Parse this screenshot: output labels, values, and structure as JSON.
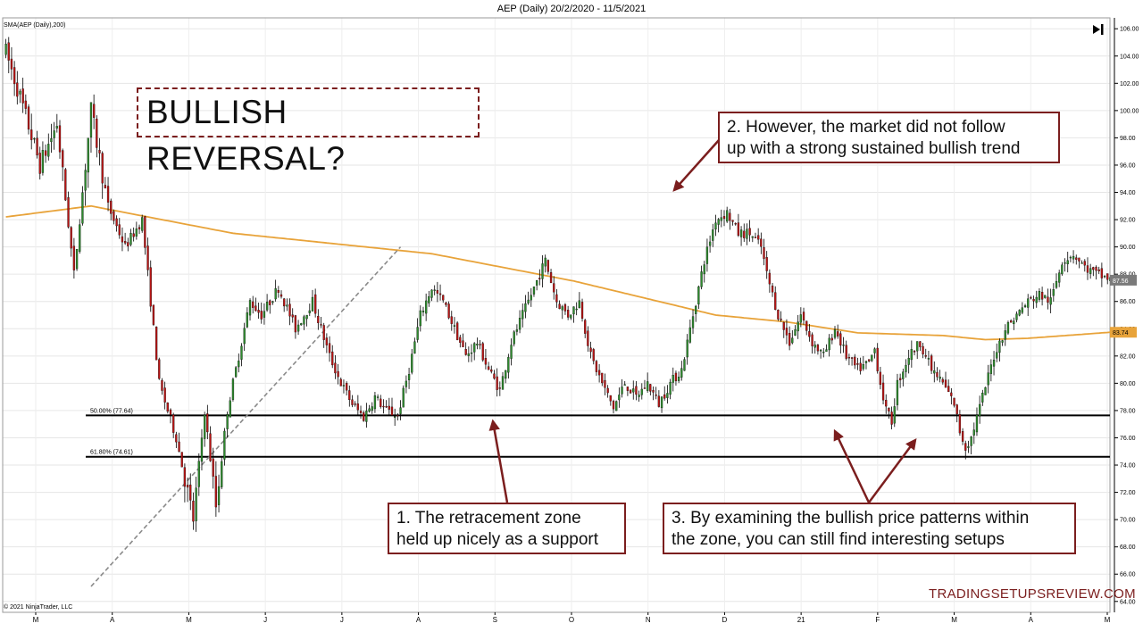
{
  "chart_data": {
    "type": "candlestick",
    "title": "AEP (Daily)  20/2/2020 - 11/5/2021",
    "indicator_label": "SMA(AEP (Daily),200)",
    "copyright": "© 2021 NinjaTrader, LLC",
    "ylim": [
      63.2,
      106.8
    ],
    "y_ticks": [
      64,
      66,
      68,
      70,
      72,
      74,
      76,
      78,
      80,
      82,
      84,
      86,
      88,
      90,
      92,
      94,
      96,
      98,
      100,
      102,
      104,
      106
    ],
    "y_tick_labels": [
      "64.00",
      "66.00",
      "68.00",
      "70.00",
      "72.00",
      "74.00",
      "76.00",
      "78.00",
      "80.00",
      "82.00",
      "84.00",
      "86.00",
      "88.00",
      "90.00",
      "92.00",
      "94.00",
      "96.00",
      "98.00",
      "100.00",
      "102.00",
      "104.00",
      "106.00"
    ],
    "months": [
      "M",
      "A",
      "M",
      "J",
      "J",
      "A",
      "S",
      "O",
      "N",
      "D",
      "21",
      "F",
      "M",
      "A",
      "M"
    ],
    "price_path": [
      [
        0,
        104.3
      ],
      [
        5,
        101
      ],
      [
        12,
        96
      ],
      [
        18,
        99
      ],
      [
        24,
        88
      ],
      [
        30,
        100
      ],
      [
        36,
        93
      ],
      [
        42,
        90
      ],
      [
        48,
        92
      ],
      [
        54,
        80
      ],
      [
        60,
        76
      ],
      [
        63,
        73
      ],
      [
        66,
        70
      ],
      [
        70,
        78
      ],
      [
        74,
        71
      ],
      [
        78,
        78
      ],
      [
        82,
        82
      ],
      [
        86,
        86
      ],
      [
        90,
        85
      ],
      [
        96,
        87
      ],
      [
        102,
        84
      ],
      [
        108,
        86
      ],
      [
        114,
        82
      ],
      [
        118,
        80
      ],
      [
        122,
        78.5
      ],
      [
        126,
        77.5
      ],
      [
        130,
        79
      ],
      [
        134,
        78
      ],
      [
        138,
        77.6
      ],
      [
        142,
        81
      ],
      [
        146,
        85
      ],
      [
        150,
        87
      ],
      [
        154,
        86
      ],
      [
        158,
        84
      ],
      [
        162,
        82
      ],
      [
        166,
        83
      ],
      [
        170,
        81
      ],
      [
        174,
        79.5
      ],
      [
        178,
        83
      ],
      [
        182,
        85
      ],
      [
        186,
        87
      ],
      [
        190,
        89
      ],
      [
        194,
        86
      ],
      [
        198,
        85
      ],
      [
        202,
        86
      ],
      [
        206,
        82
      ],
      [
        210,
        80
      ],
      [
        214,
        78.2
      ],
      [
        218,
        80
      ],
      [
        222,
        79
      ],
      [
        226,
        80
      ],
      [
        230,
        78.5
      ],
      [
        234,
        80
      ],
      [
        238,
        81
      ],
      [
        242,
        85
      ],
      [
        246,
        89
      ],
      [
        250,
        92
      ],
      [
        254,
        92.5
      ],
      [
        258,
        91
      ],
      [
        262,
        91
      ],
      [
        266,
        90
      ],
      [
        268,
        88
      ],
      [
        272,
        85
      ],
      [
        276,
        83
      ],
      [
        280,
        85
      ],
      [
        284,
        83
      ],
      [
        288,
        82
      ],
      [
        292,
        84
      ],
      [
        296,
        82
      ],
      [
        300,
        81
      ],
      [
        304,
        81.5
      ],
      [
        306,
        82.5
      ],
      [
        308,
        80
      ],
      [
        310,
        78
      ],
      [
        312,
        77.2
      ],
      [
        314,
        80
      ],
      [
        318,
        82
      ],
      [
        322,
        83
      ],
      [
        326,
        81
      ],
      [
        330,
        80
      ],
      [
        334,
        78.5
      ],
      [
        336,
        76.5
      ],
      [
        338,
        75.3
      ],
      [
        340,
        76
      ],
      [
        344,
        79
      ],
      [
        348,
        82
      ],
      [
        352,
        84
      ],
      [
        356,
        85
      ],
      [
        360,
        86
      ],
      [
        364,
        86.5
      ],
      [
        368,
        86
      ],
      [
        372,
        89
      ],
      [
        376,
        89.5
      ],
      [
        380,
        88.5
      ],
      [
        384,
        88
      ],
      [
        388,
        87.7
      ],
      [
        389,
        87.6
      ]
    ],
    "sma200": [
      [
        0,
        92.2
      ],
      [
        30,
        93
      ],
      [
        80,
        91
      ],
      [
        150,
        89.5
      ],
      [
        200,
        87.5
      ],
      [
        220,
        86.5
      ],
      [
        250,
        85
      ],
      [
        275,
        84.5
      ],
      [
        300,
        83.7
      ],
      [
        330,
        83.5
      ],
      [
        345,
        83.2
      ],
      [
        360,
        83.3
      ],
      [
        389,
        83.74
      ]
    ],
    "fib_levels": [
      {
        "label": "50.00% (77.64)",
        "value": 77.64
      },
      {
        "label": "61.80% (74.61)",
        "value": 74.61
      }
    ],
    "trend_line": {
      "from": [
        30,
        65.1
      ],
      "to": [
        139,
        90
      ]
    },
    "sma_value_label": "83.74",
    "last_price_label": "87.56"
  },
  "annotations": {
    "headline": "BULLISH REVERSAL?",
    "note1": [
      "1. The retracement zone",
      "held up nicely as a support"
    ],
    "note2": [
      "2. However, the market did not follow",
      "up with a strong sustained bullish trend"
    ],
    "note3": [
      "3. By examining the bullish price patterns within",
      "the zone, you can still find interesting setups"
    ]
  },
  "watermark": "TRADINGSETUPSREVIEW.COM",
  "colors": {
    "up": "#2e8b2e",
    "down": "#b81414",
    "sma": "#e8a33a",
    "annotation": "#7b1e1e"
  }
}
